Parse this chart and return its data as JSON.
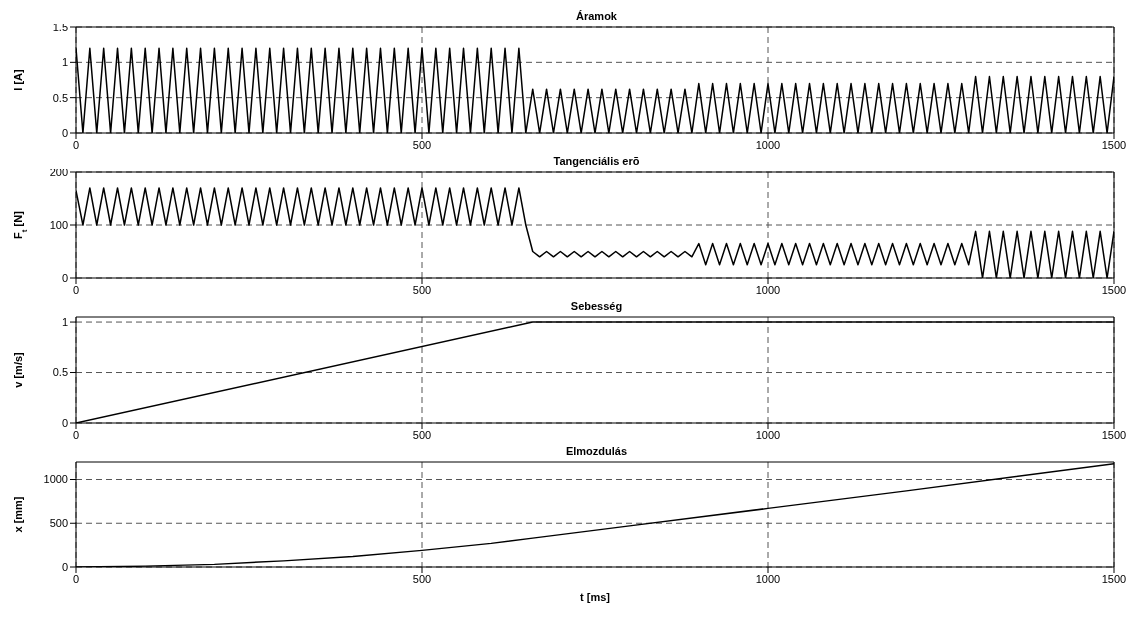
{
  "chart_data": [
    {
      "type": "line",
      "title": "Áramok",
      "ylabel": "I [A]",
      "xlim": [
        0,
        1500
      ],
      "xticks": [
        0,
        500,
        1000,
        1500
      ],
      "ylim": [
        0,
        1.5
      ],
      "yticks": [
        0,
        0.5,
        1,
        1.5
      ],
      "grid": true,
      "line_style": "solid",
      "x": [
        0,
        10,
        20,
        30,
        40,
        50,
        60,
        70,
        80,
        90,
        100,
        110,
        120,
        130,
        140,
        150,
        160,
        170,
        180,
        190,
        200,
        210,
        220,
        230,
        240,
        250,
        260,
        270,
        280,
        290,
        300,
        310,
        320,
        330,
        340,
        350,
        360,
        370,
        380,
        390,
        400,
        410,
        420,
        430,
        440,
        450,
        460,
        470,
        480,
        490,
        500,
        510,
        520,
        530,
        540,
        550,
        560,
        570,
        580,
        590,
        600,
        610,
        620,
        630,
        640,
        650,
        660,
        670,
        680,
        690,
        700,
        710,
        720,
        730,
        740,
        750,
        760,
        770,
        780,
        790,
        800,
        810,
        820,
        830,
        840,
        850,
        860,
        870,
        880,
        890,
        900,
        910,
        920,
        930,
        940,
        950,
        960,
        970,
        980,
        990,
        1000,
        1010,
        1020,
        1030,
        1040,
        1050,
        1060,
        1070,
        1080,
        1090,
        1100,
        1110,
        1120,
        1130,
        1140,
        1150,
        1160,
        1170,
        1180,
        1190,
        1200,
        1210,
        1220,
        1230,
        1240,
        1250,
        1260,
        1270,
        1280,
        1290,
        1300,
        1310,
        1320,
        1330,
        1340,
        1350,
        1360,
        1370,
        1380,
        1390,
        1400,
        1410,
        1420,
        1430,
        1440,
        1450,
        1460,
        1470,
        1480,
        1490,
        1500
      ],
      "series": [
        {
          "color": "#000000",
          "values": [
            1.2,
            0,
            1.2,
            0,
            1.2,
            0,
            1.2,
            0,
            1.2,
            0,
            1.2,
            0,
            1.2,
            0,
            1.2,
            0,
            1.2,
            0,
            1.2,
            0,
            1.2,
            0,
            1.2,
            0,
            1.2,
            0,
            1.2,
            0,
            1.2,
            0,
            1.2,
            0,
            1.2,
            0,
            1.2,
            0,
            1.2,
            0,
            1.2,
            0,
            1.2,
            0,
            1.2,
            0,
            1.2,
            0,
            1.2,
            0,
            1.2,
            0,
            1.2,
            0,
            1.2,
            0,
            1.2,
            0,
            1.2,
            0,
            1.2,
            0,
            1.2,
            0,
            1.2,
            0,
            1.2,
            0,
            0.62,
            0,
            0.62,
            0,
            0.62,
            0,
            0.62,
            0,
            0.62,
            0,
            0.62,
            0,
            0.62,
            0,
            0.62,
            0,
            0.62,
            0,
            0.62,
            0,
            0.62,
            0,
            0.62,
            0,
            0.7,
            0,
            0.7,
            0,
            0.7,
            0,
            0.7,
            0,
            0.7,
            0,
            0.7,
            0,
            0.7,
            0,
            0.7,
            0,
            0.7,
            0,
            0.7,
            0,
            0.7,
            0,
            0.7,
            0,
            0.7,
            0,
            0.7,
            0,
            0.7,
            0,
            0.7,
            0,
            0.7,
            0,
            0.7,
            0,
            0.7,
            0,
            0.7,
            0,
            0.8,
            0,
            0.8,
            0,
            0.8,
            0,
            0.8,
            0,
            0.8,
            0,
            0.8,
            0,
            0.8,
            0,
            0.8,
            0,
            0.8,
            0,
            0.8,
            0,
            0.8
          ]
        }
      ]
    },
    {
      "type": "line",
      "title": "Tangenciális erõ",
      "ylabel": "F$_{t}$ [N]",
      "xlim": [
        0,
        1500
      ],
      "xticks": [
        0,
        500,
        1000,
        1500
      ],
      "ylim": [
        0,
        200
      ],
      "yticks": [
        0,
        100,
        200
      ],
      "grid": true,
      "line_style": "solid",
      "x": [
        0,
        10,
        20,
        30,
        40,
        50,
        60,
        70,
        80,
        90,
        100,
        110,
        120,
        130,
        140,
        150,
        160,
        170,
        180,
        190,
        200,
        210,
        220,
        230,
        240,
        250,
        260,
        270,
        280,
        290,
        300,
        310,
        320,
        330,
        340,
        350,
        360,
        370,
        380,
        390,
        400,
        410,
        420,
        430,
        440,
        450,
        460,
        470,
        480,
        490,
        500,
        510,
        520,
        530,
        540,
        550,
        560,
        570,
        580,
        590,
        600,
        610,
        620,
        630,
        640,
        650,
        660,
        670,
        680,
        690,
        700,
        710,
        720,
        730,
        740,
        750,
        760,
        770,
        780,
        790,
        800,
        810,
        820,
        830,
        840,
        850,
        860,
        870,
        880,
        890,
        900,
        910,
        920,
        930,
        940,
        950,
        960,
        970,
        980,
        990,
        1000,
        1010,
        1020,
        1030,
        1040,
        1050,
        1060,
        1070,
        1080,
        1090,
        1100,
        1110,
        1120,
        1130,
        1140,
        1150,
        1160,
        1170,
        1180,
        1190,
        1200,
        1210,
        1220,
        1230,
        1240,
        1250,
        1260,
        1270,
        1280,
        1290,
        1300,
        1310,
        1320,
        1330,
        1340,
        1350,
        1360,
        1370,
        1380,
        1390,
        1400,
        1410,
        1420,
        1430,
        1440,
        1450,
        1460,
        1470,
        1480,
        1490,
        1500
      ],
      "series": [
        {
          "color": "#000000",
          "values": [
            165,
            100,
            170,
            100,
            170,
            100,
            170,
            100,
            170,
            100,
            170,
            100,
            170,
            100,
            170,
            100,
            170,
            100,
            170,
            100,
            170,
            100,
            170,
            100,
            170,
            100,
            170,
            100,
            170,
            100,
            170,
            100,
            170,
            100,
            170,
            100,
            170,
            100,
            170,
            100,
            170,
            100,
            170,
            100,
            170,
            100,
            170,
            100,
            170,
            100,
            170,
            100,
            170,
            100,
            170,
            100,
            170,
            100,
            170,
            100,
            170,
            100,
            170,
            100,
            170,
            100,
            50,
            40,
            50,
            40,
            50,
            40,
            50,
            40,
            50,
            40,
            50,
            40,
            50,
            40,
            50,
            40,
            50,
            40,
            50,
            40,
            50,
            40,
            50,
            40,
            65,
            25,
            65,
            25,
            65,
            25,
            65,
            25,
            65,
            25,
            65,
            25,
            65,
            25,
            65,
            25,
            65,
            25,
            65,
            25,
            65,
            25,
            65,
            25,
            65,
            25,
            65,
            25,
            65,
            25,
            65,
            25,
            65,
            25,
            65,
            25,
            65,
            25,
            65,
            25,
            88,
            0,
            88,
            0,
            88,
            0,
            88,
            0,
            88,
            0,
            88,
            0,
            88,
            0,
            88,
            0,
            88,
            0,
            88,
            0,
            88
          ]
        }
      ]
    },
    {
      "type": "line",
      "title": "Sebesség",
      "ylabel": "v [m/s]",
      "xlim": [
        0,
        1500
      ],
      "xticks": [
        0,
        500,
        1000,
        1500
      ],
      "ylim": [
        0,
        1.05
      ],
      "yticks": [
        0,
        0.5,
        1
      ],
      "grid": true,
      "line_style": "solid",
      "x": [
        0,
        660,
        1500
      ],
      "series": [
        {
          "color": "#000000",
          "values": [
            0,
            1,
            1
          ]
        }
      ]
    },
    {
      "type": "line",
      "title": "Elmozdulás",
      "ylabel": "x [mm]",
      "xlabel": "t [ms]",
      "xlim": [
        0,
        1500
      ],
      "xticks": [
        0,
        500,
        1000,
        1500
      ],
      "ylim": [
        0,
        1200
      ],
      "yticks": [
        0,
        500,
        1000
      ],
      "grid": true,
      "line_style": "solid",
      "x": [
        0,
        100,
        200,
        300,
        400,
        500,
        600,
        660,
        800,
        1000,
        1200,
        1500
      ],
      "series": [
        {
          "color": "#000000",
          "values": [
            0,
            10,
            30,
            70,
            120,
            190,
            270,
            330,
            470,
            670,
            870,
            1180
          ]
        }
      ]
    }
  ]
}
